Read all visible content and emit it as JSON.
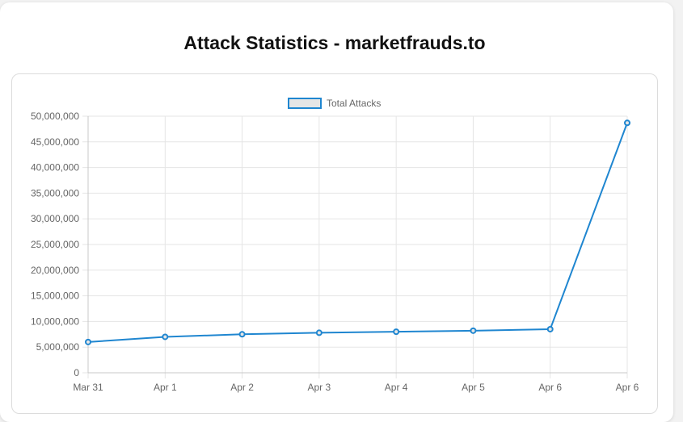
{
  "page": {
    "title": "Attack Statistics - marketfrauds.to"
  },
  "colors": {
    "line": "#1f86d0",
    "legend_fill": "#e6e6e6",
    "grid": "#e5e5e5"
  },
  "chart_data": {
    "type": "line",
    "title": "",
    "categories": [
      "Mar 31",
      "Apr 1",
      "Apr 2",
      "Apr 3",
      "Apr 4",
      "Apr 5",
      "Apr 6",
      "Apr 6"
    ],
    "series": [
      {
        "name": "Total Attacks",
        "values": [
          6000000,
          7000000,
          7500000,
          7800000,
          8000000,
          8200000,
          8500000,
          48700000
        ]
      }
    ],
    "y_ticks": [
      "0",
      "5,000,000",
      "10,000,000",
      "15,000,000",
      "20,000,000",
      "25,000,000",
      "30,000,000",
      "35,000,000",
      "40,000,000",
      "45,000,000",
      "50,000,000"
    ],
    "ylim": [
      0,
      50000000
    ],
    "grid": true,
    "legend_position": "top"
  }
}
